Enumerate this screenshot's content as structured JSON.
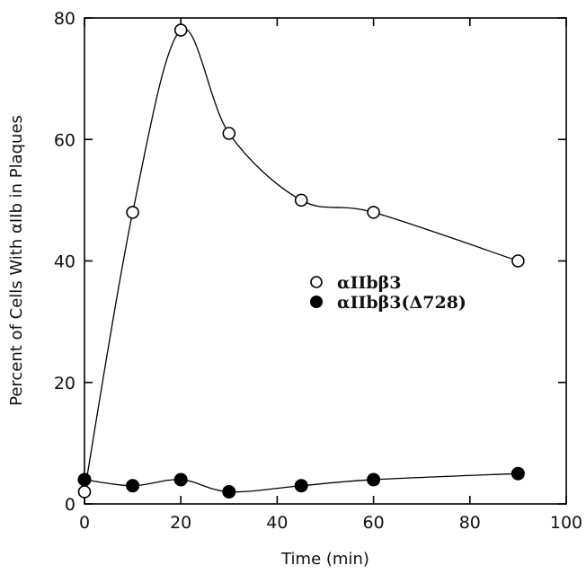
{
  "chart_data": {
    "type": "line",
    "xlabel": "Time (min)",
    "ylabel": "Percent of Cells With αIIb in Plaques",
    "xlim": [
      0,
      100
    ],
    "ylim": [
      0,
      80
    ],
    "xticks": [
      0,
      20,
      40,
      60,
      80,
      100
    ],
    "yticks": [
      0,
      20,
      40,
      60,
      80
    ],
    "grid": false,
    "legend_position": "center-right",
    "series": [
      {
        "name": "αIIbβ3",
        "marker": "open-circle",
        "x": [
          0,
          10,
          20,
          30,
          45,
          60,
          90
        ],
        "y": [
          2,
          48,
          78,
          61,
          50,
          48,
          40
        ]
      },
      {
        "name": "αIIbβ3(Δ728)",
        "marker": "filled-circle",
        "x": [
          0,
          10,
          20,
          30,
          45,
          60,
          90
        ],
        "y": [
          4,
          3,
          4,
          2,
          3,
          4,
          5
        ]
      }
    ]
  }
}
